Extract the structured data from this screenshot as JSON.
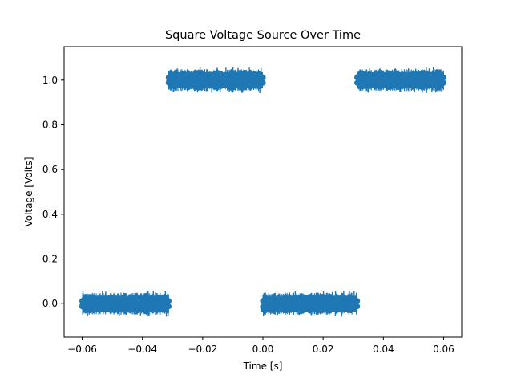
{
  "chart_data": {
    "type": "scatter",
    "title": "Square Voltage Source Over Time",
    "xlabel": "Time [s]",
    "ylabel": "Voltage [Volts]",
    "xlim": [
      -0.066,
      0.066
    ],
    "ylim": [
      -0.15,
      1.15
    ],
    "xticks": [
      -0.06,
      -0.04,
      -0.02,
      0.0,
      0.02,
      0.04,
      0.06
    ],
    "xtick_labels": [
      "−0.06",
      "−0.04",
      "−0.02",
      "0.00",
      "0.02",
      "0.04",
      "0.06"
    ],
    "yticks": [
      0.0,
      0.2,
      0.4,
      0.6,
      0.8,
      1.0
    ],
    "ytick_labels": [
      "0.0",
      "0.2",
      "0.4",
      "0.6",
      "0.8",
      "1.0"
    ],
    "grid": false,
    "legend": "none",
    "color": "#1f77b4",
    "series": [
      {
        "segments": [
          {
            "x_start": -0.06,
            "x_end": -0.0313,
            "y": 0.0
          },
          {
            "x_start": -0.0313,
            "x_end": 0.0,
            "y": 1.0
          },
          {
            "x_start": 0.0,
            "x_end": 0.0313,
            "y": 0.0
          },
          {
            "x_start": 0.0313,
            "x_end": 0.06,
            "y": 1.0
          }
        ],
        "noise_band": 0.09,
        "marker_band": 0.03
      }
    ]
  }
}
